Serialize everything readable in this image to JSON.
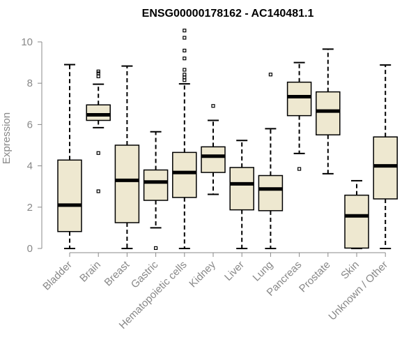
{
  "chart_data": {
    "type": "boxplot",
    "title": "ENSG00000178162 - AC140481.1",
    "xlabel": "",
    "ylabel": "Expression",
    "ylim": [
      0,
      10.6
    ],
    "yticks": [
      0,
      2,
      4,
      6,
      8,
      10
    ],
    "grid": false,
    "box_fill": "#EEE8D0",
    "categories": [
      "Bladder",
      "Brain",
      "Breast",
      "Gastric",
      "Hematopoietic cells",
      "Kidney",
      "Liver",
      "Lung",
      "Pancreas",
      "Prostate",
      "Skin",
      "Unknown / Other"
    ],
    "boxes": [
      {
        "label": "Bladder",
        "whisker_low": 0.0,
        "q1": 0.82,
        "median": 2.1,
        "q3": 4.28,
        "whisker_high": 8.9,
        "outliers": []
      },
      {
        "label": "Brain",
        "whisker_low": 5.85,
        "q1": 6.2,
        "median": 6.47,
        "q3": 6.95,
        "whisker_high": 7.95,
        "outliers": [
          2.77,
          4.62,
          8.33,
          8.48,
          8.57
        ]
      },
      {
        "label": "Breast",
        "whisker_low": 0.0,
        "q1": 1.25,
        "median": 3.3,
        "q3": 5.0,
        "whisker_high": 8.83,
        "outliers": []
      },
      {
        "label": "Gastric",
        "whisker_low": 1.0,
        "q1": 2.33,
        "median": 3.22,
        "q3": 3.8,
        "whisker_high": 5.65,
        "outliers": [
          0.02
        ]
      },
      {
        "label": "Hematopoietic cells",
        "whisker_low": 0.0,
        "q1": 2.47,
        "median": 3.68,
        "q3": 4.65,
        "whisker_high": 7.97,
        "outliers": [
          8.15,
          8.28,
          8.42,
          8.65,
          9.2,
          9.58,
          10.2,
          10.55
        ]
      },
      {
        "label": "Kidney",
        "whisker_low": 2.62,
        "q1": 3.68,
        "median": 4.47,
        "q3": 4.92,
        "whisker_high": 6.2,
        "outliers": [
          6.9
        ]
      },
      {
        "label": "Liver",
        "whisker_low": 0.0,
        "q1": 1.87,
        "median": 3.13,
        "q3": 3.92,
        "whisker_high": 5.23,
        "outliers": []
      },
      {
        "label": "Lung",
        "whisker_low": 0.0,
        "q1": 1.83,
        "median": 2.88,
        "q3": 3.53,
        "whisker_high": 5.8,
        "outliers": [
          8.42
        ]
      },
      {
        "label": "Pancreas",
        "whisker_low": 4.6,
        "q1": 6.43,
        "median": 7.35,
        "q3": 8.05,
        "whisker_high": 9.0,
        "outliers": [
          3.85
        ]
      },
      {
        "label": "Prostate",
        "whisker_low": 3.62,
        "q1": 5.5,
        "median": 6.65,
        "q3": 7.58,
        "whisker_high": 9.65,
        "outliers": []
      },
      {
        "label": "Skin",
        "whisker_low": 0.0,
        "q1": 0.02,
        "median": 1.58,
        "q3": 2.58,
        "whisker_high": 3.28,
        "outliers": []
      },
      {
        "label": "Unknown / Other",
        "whisker_low": 0.0,
        "q1": 2.4,
        "median": 4.0,
        "q3": 5.4,
        "whisker_high": 8.88,
        "outliers": []
      }
    ]
  }
}
